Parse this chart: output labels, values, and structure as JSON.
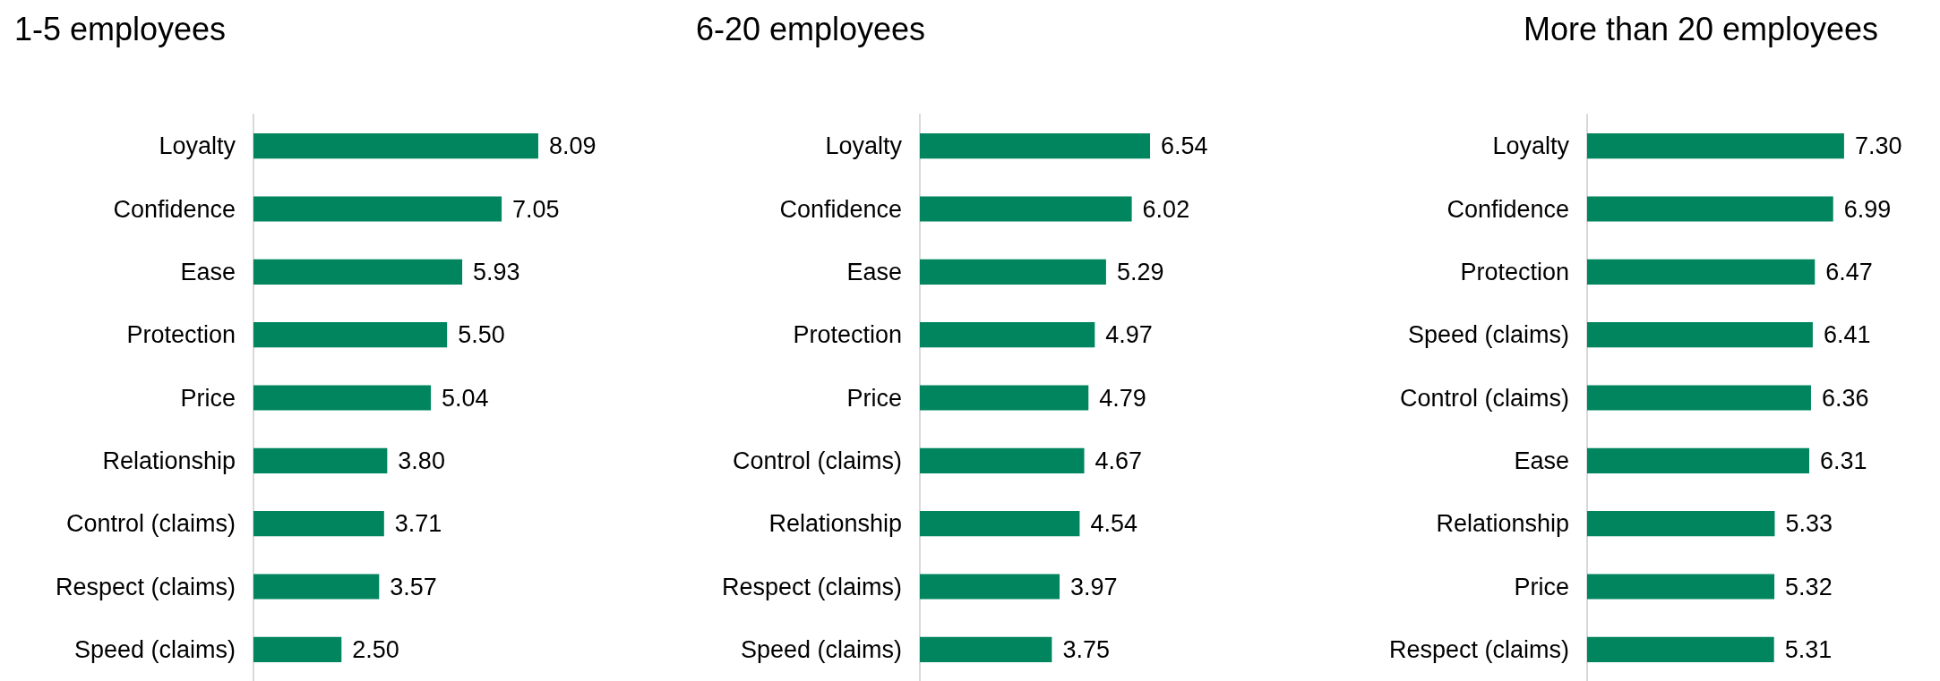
{
  "chart_data": [
    {
      "type": "bar",
      "orientation": "horizontal",
      "title": "1-5 employees",
      "categories": [
        "Loyalty",
        "Confidence",
        "Ease",
        "Protection",
        "Price",
        "Relationship",
        "Control (claims)",
        "Respect (claims)",
        "Speed (claims)"
      ],
      "values": [
        8.09,
        7.05,
        5.93,
        5.5,
        5.04,
        3.8,
        3.71,
        3.57,
        2.5
      ],
      "value_labels": [
        "8.09",
        "7.05",
        "5.93",
        "5.50",
        "5.04",
        "3.80",
        "3.71",
        "3.57",
        "2.50"
      ],
      "color": "#00855f",
      "tick_labels": "y"
    },
    {
      "type": "bar",
      "orientation": "horizontal",
      "title": "6-20 employees",
      "categories": [
        "Loyalty",
        "Confidence",
        "Ease",
        "Protection",
        "Price",
        "Control (claims)",
        "Relationship",
        "Respect (claims)",
        "Speed (claims)"
      ],
      "values": [
        6.54,
        6.02,
        5.29,
        4.97,
        4.79,
        4.67,
        4.54,
        3.97,
        3.75
      ],
      "value_labels": [
        "6.54",
        "6.02",
        "5.29",
        "4.97",
        "4.79",
        "4.67",
        "4.54",
        "3.97",
        "3.75"
      ],
      "color": "#00855f",
      "tick_labels": "y"
    },
    {
      "type": "bar",
      "orientation": "horizontal",
      "title": "More than 20 employees",
      "categories": [
        "Loyalty",
        "Confidence",
        "Protection",
        "Speed (claims)",
        "Control (claims)",
        "Ease",
        "Relationship",
        "Price",
        "Respect (claims)"
      ],
      "values": [
        7.3,
        6.99,
        6.47,
        6.41,
        6.36,
        6.31,
        5.33,
        5.32,
        5.31
      ],
      "value_labels": [
        "7.30",
        "6.99",
        "6.47",
        "6.41",
        "6.36",
        "6.31",
        "5.33",
        "5.32",
        "5.31"
      ],
      "color": "#00855f",
      "tick_labels": "y"
    }
  ]
}
